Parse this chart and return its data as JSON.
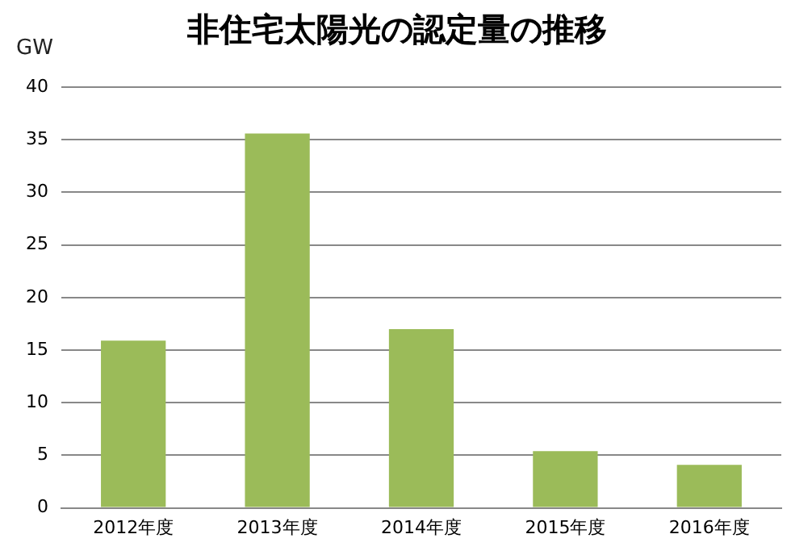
{
  "chart_data": {
    "type": "bar",
    "title": "非住宅太陽光の認定量の推移",
    "ylabel": "GW",
    "categories": [
      "2012年度",
      "2013年度",
      "2014年度",
      "2015年度",
      "2016年度"
    ],
    "values": [
      15.9,
      35.6,
      17.0,
      5.4,
      4.1
    ],
    "color": "#9bbb59",
    "ylim": [
      0,
      40
    ],
    "yticks": [
      0,
      5,
      10,
      15,
      20,
      25,
      30,
      35,
      40
    ],
    "grid": "y",
    "legend": false
  }
}
